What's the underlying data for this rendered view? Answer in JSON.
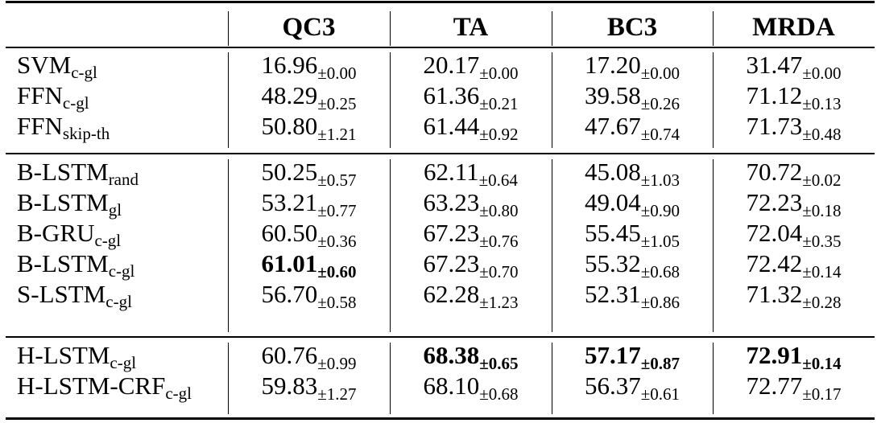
{
  "table": {
    "columns": [
      "QC3",
      "TA",
      "BC3",
      "MRDA"
    ],
    "groups": [
      {
        "rows": [
          {
            "name": "SVM",
            "name_sub": "c-gl",
            "cells": [
              {
                "val": "16.96",
                "sub": "±0.00"
              },
              {
                "val": "20.17",
                "sub": "±0.00"
              },
              {
                "val": "17.20",
                "sub": "±0.00"
              },
              {
                "val": "31.47",
                "sub": "±0.00"
              }
            ]
          },
          {
            "name": "FFN",
            "name_sub": "c-gl",
            "cells": [
              {
                "val": "48.29",
                "sub": "±0.25"
              },
              {
                "val": "61.36",
                "sub": "±0.21"
              },
              {
                "val": "39.58",
                "sub": "±0.26"
              },
              {
                "val": "71.12",
                "sub": "±0.13"
              }
            ]
          },
          {
            "name": "FFN",
            "name_sub": "skip-th",
            "cells": [
              {
                "val": "50.80",
                "sub": "±1.21"
              },
              {
                "val": "61.44",
                "sub": "±0.92"
              },
              {
                "val": "47.67",
                "sub": "±0.74"
              },
              {
                "val": "71.73",
                "sub": "±0.48"
              }
            ]
          }
        ]
      },
      {
        "rows": [
          {
            "name": "B-LSTM",
            "name_sub": "rand",
            "cells": [
              {
                "val": "50.25",
                "sub": "±0.57"
              },
              {
                "val": "62.11",
                "sub": "±0.64"
              },
              {
                "val": "45.08",
                "sub": "±1.03"
              },
              {
                "val": "70.72",
                "sub": "±0.02"
              }
            ]
          },
          {
            "name": "B-LSTM",
            "name_sub": "gl",
            "cells": [
              {
                "val": "53.21",
                "sub": "±0.77"
              },
              {
                "val": "63.23",
                "sub": "±0.80"
              },
              {
                "val": "49.04",
                "sub": "±0.90"
              },
              {
                "val": "72.23",
                "sub": "±0.18"
              }
            ]
          },
          {
            "name": "B-GRU",
            "name_sub": "c-gl",
            "cells": [
              {
                "val": "60.50",
                "sub": "±0.36"
              },
              {
                "val": "67.23",
                "sub": "±0.76"
              },
              {
                "val": "55.45",
                "sub": "±1.05"
              },
              {
                "val": "72.04",
                "sub": "±0.35"
              }
            ]
          },
          {
            "name": "B-LSTM",
            "name_sub": "c-gl",
            "cells": [
              {
                "val": "61.01",
                "sub": "±0.60",
                "bold": true
              },
              {
                "val": "67.23",
                "sub": "±0.70"
              },
              {
                "val": "55.32",
                "sub": "±0.68"
              },
              {
                "val": "72.42",
                "sub": "±0.14"
              }
            ]
          },
          {
            "name": "S-LSTM",
            "name_sub": "c-gl",
            "cells": [
              {
                "val": "56.70",
                "sub": "±0.58"
              },
              {
                "val": "62.28",
                "sub": "±1.23"
              },
              {
                "val": "52.31",
                "sub": "±0.86"
              },
              {
                "val": "71.32",
                "sub": "±0.28"
              }
            ]
          }
        ]
      },
      {
        "rows": [
          {
            "name": "H-LSTM",
            "name_sub": "c-gl",
            "cells": [
              {
                "val": "60.76",
                "sub": "±0.99"
              },
              {
                "val": "68.38",
                "sub": "±0.65",
                "bold": true
              },
              {
                "val": "57.17",
                "sub": "±0.87",
                "bold": true
              },
              {
                "val": "72.91",
                "sub": "±0.14",
                "bold": true
              }
            ]
          },
          {
            "name": "H-LSTM-CRF",
            "name_sub": "c-gl",
            "cells": [
              {
                "val": "59.83",
                "sub": "±1.27"
              },
              {
                "val": "68.10",
                "sub": "±0.68"
              },
              {
                "val": "56.37",
                "sub": "±0.61"
              },
              {
                "val": "72.77",
                "sub": "±0.17"
              }
            ]
          }
        ]
      }
    ]
  }
}
